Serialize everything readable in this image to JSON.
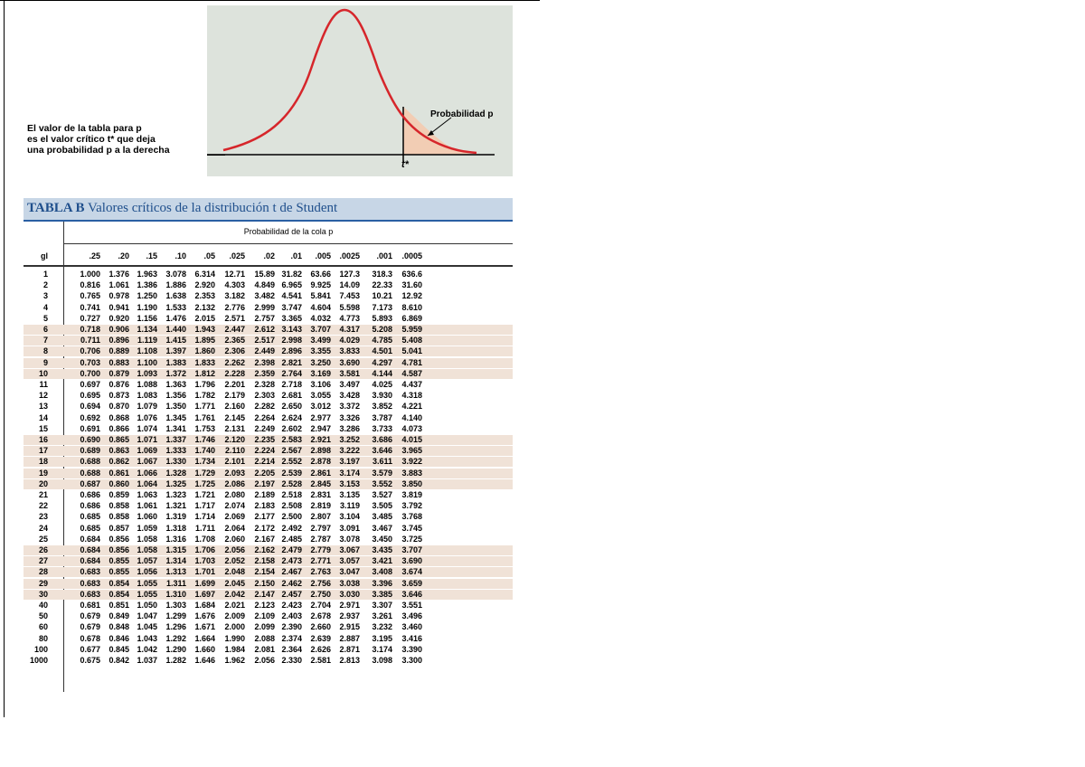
{
  "figure": {
    "caption": [
      "El valor de la tabla para p",
      "es el valor crítico t* que deja",
      "una probabilidad p a la derecha"
    ],
    "prob_label": "Probabilidad p",
    "t_label": "t*",
    "colors": {
      "curve": "#d6262b",
      "area": "#f2cdb4",
      "panel": "#dde3dc"
    }
  },
  "table": {
    "title_bold": "TABLA B",
    "title_rest": " Valores críticos de la distribución t de Student",
    "super_header": "Probabilidad de la cola p",
    "df_header": "gl",
    "columns": [
      ".25",
      ".20",
      ".15",
      ".10",
      ".05",
      ".025",
      ".02",
      ".01",
      ".005",
      ".0025",
      ".001",
      ".0005"
    ],
    "rows": [
      {
        "df": "1",
        "v": [
          "1.000",
          "1.376",
          "1.963",
          "3.078",
          "6.314",
          "12.71",
          "15.89",
          "31.82",
          "63.66",
          "127.3",
          "318.3",
          "636.6"
        ]
      },
      {
        "df": "2",
        "v": [
          "0.816",
          "1.061",
          "1.386",
          "1.886",
          "2.920",
          "4.303",
          "4.849",
          "6.965",
          "9.925",
          "14.09",
          "22.33",
          "31.60"
        ]
      },
      {
        "df": "3",
        "v": [
          "0.765",
          "0.978",
          "1.250",
          "1.638",
          "2.353",
          "3.182",
          "3.482",
          "4.541",
          "5.841",
          "7.453",
          "10.21",
          "12.92"
        ]
      },
      {
        "df": "4",
        "v": [
          "0.741",
          "0.941",
          "1.190",
          "1.533",
          "2.132",
          "2.776",
          "2.999",
          "3.747",
          "4.604",
          "5.598",
          "7.173",
          "8.610"
        ]
      },
      {
        "df": "5",
        "v": [
          "0.727",
          "0.920",
          "1.156",
          "1.476",
          "2.015",
          "2.571",
          "2.757",
          "3.365",
          "4.032",
          "4.773",
          "5.893",
          "6.869"
        ]
      },
      {
        "df": "6",
        "v": [
          "0.718",
          "0.906",
          "1.134",
          "1.440",
          "1.943",
          "2.447",
          "2.612",
          "3.143",
          "3.707",
          "4.317",
          "5.208",
          "5.959"
        ]
      },
      {
        "df": "7",
        "v": [
          "0.711",
          "0.896",
          "1.119",
          "1.415",
          "1.895",
          "2.365",
          "2.517",
          "2.998",
          "3.499",
          "4.029",
          "4.785",
          "5.408"
        ]
      },
      {
        "df": "8",
        "v": [
          "0.706",
          "0.889",
          "1.108",
          "1.397",
          "1.860",
          "2.306",
          "2.449",
          "2.896",
          "3.355",
          "3.833",
          "4.501",
          "5.041"
        ]
      },
      {
        "df": "9",
        "v": [
          "0.703",
          "0.883",
          "1.100",
          "1.383",
          "1.833",
          "2.262",
          "2.398",
          "2.821",
          "3.250",
          "3.690",
          "4.297",
          "4.781"
        ]
      },
      {
        "df": "10",
        "v": [
          "0.700",
          "0.879",
          "1.093",
          "1.372",
          "1.812",
          "2.228",
          "2.359",
          "2.764",
          "3.169",
          "3.581",
          "4.144",
          "4.587"
        ]
      },
      {
        "df": "11",
        "v": [
          "0.697",
          "0.876",
          "1.088",
          "1.363",
          "1.796",
          "2.201",
          "2.328",
          "2.718",
          "3.106",
          "3.497",
          "4.025",
          "4.437"
        ]
      },
      {
        "df": "12",
        "v": [
          "0.695",
          "0.873",
          "1.083",
          "1.356",
          "1.782",
          "2.179",
          "2.303",
          "2.681",
          "3.055",
          "3.428",
          "3.930",
          "4.318"
        ]
      },
      {
        "df": "13",
        "v": [
          "0.694",
          "0.870",
          "1.079",
          "1.350",
          "1.771",
          "2.160",
          "2.282",
          "2.650",
          "3.012",
          "3.372",
          "3.852",
          "4.221"
        ]
      },
      {
        "df": "14",
        "v": [
          "0.692",
          "0.868",
          "1.076",
          "1.345",
          "1.761",
          "2.145",
          "2.264",
          "2.624",
          "2.977",
          "3.326",
          "3.787",
          "4.140"
        ]
      },
      {
        "df": "15",
        "v": [
          "0.691",
          "0.866",
          "1.074",
          "1.341",
          "1.753",
          "2.131",
          "2.249",
          "2.602",
          "2.947",
          "3.286",
          "3.733",
          "4.073"
        ]
      },
      {
        "df": "16",
        "v": [
          "0.690",
          "0.865",
          "1.071",
          "1.337",
          "1.746",
          "2.120",
          "2.235",
          "2.583",
          "2.921",
          "3.252",
          "3.686",
          "4.015"
        ]
      },
      {
        "df": "17",
        "v": [
          "0.689",
          "0.863",
          "1.069",
          "1.333",
          "1.740",
          "2.110",
          "2.224",
          "2.567",
          "2.898",
          "3.222",
          "3.646",
          "3.965"
        ]
      },
      {
        "df": "18",
        "v": [
          "0.688",
          "0.862",
          "1.067",
          "1.330",
          "1.734",
          "2.101",
          "2.214",
          "2.552",
          "2.878",
          "3.197",
          "3.611",
          "3.922"
        ]
      },
      {
        "df": "19",
        "v": [
          "0.688",
          "0.861",
          "1.066",
          "1.328",
          "1.729",
          "2.093",
          "2.205",
          "2.539",
          "2.861",
          "3.174",
          "3.579",
          "3.883"
        ]
      },
      {
        "df": "20",
        "v": [
          "0.687",
          "0.860",
          "1.064",
          "1.325",
          "1.725",
          "2.086",
          "2.197",
          "2.528",
          "2.845",
          "3.153",
          "3.552",
          "3.850"
        ]
      },
      {
        "df": "21",
        "v": [
          "0.686",
          "0.859",
          "1.063",
          "1.323",
          "1.721",
          "2.080",
          "2.189",
          "2.518",
          "2.831",
          "3.135",
          "3.527",
          "3.819"
        ]
      },
      {
        "df": "22",
        "v": [
          "0.686",
          "0.858",
          "1.061",
          "1.321",
          "1.717",
          "2.074",
          "2.183",
          "2.508",
          "2.819",
          "3.119",
          "3.505",
          "3.792"
        ]
      },
      {
        "df": "23",
        "v": [
          "0.685",
          "0.858",
          "1.060",
          "1.319",
          "1.714",
          "2.069",
          "2.177",
          "2.500",
          "2.807",
          "3.104",
          "3.485",
          "3.768"
        ]
      },
      {
        "df": "24",
        "v": [
          "0.685",
          "0.857",
          "1.059",
          "1.318",
          "1.711",
          "2.064",
          "2.172",
          "2.492",
          "2.797",
          "3.091",
          "3.467",
          "3.745"
        ]
      },
      {
        "df": "25",
        "v": [
          "0.684",
          "0.856",
          "1.058",
          "1.316",
          "1.708",
          "2.060",
          "2.167",
          "2.485",
          "2.787",
          "3.078",
          "3.450",
          "3.725"
        ]
      },
      {
        "df": "26",
        "v": [
          "0.684",
          "0.856",
          "1.058",
          "1.315",
          "1.706",
          "2.056",
          "2.162",
          "2.479",
          "2.779",
          "3.067",
          "3.435",
          "3.707"
        ]
      },
      {
        "df": "27",
        "v": [
          "0.684",
          "0.855",
          "1.057",
          "1.314",
          "1.703",
          "2.052",
          "2.158",
          "2.473",
          "2.771",
          "3.057",
          "3.421",
          "3.690"
        ]
      },
      {
        "df": "28",
        "v": [
          "0.683",
          "0.855",
          "1.056",
          "1.313",
          "1.701",
          "2.048",
          "2.154",
          "2.467",
          "2.763",
          "3.047",
          "3.408",
          "3.674"
        ]
      },
      {
        "df": "29",
        "v": [
          "0.683",
          "0.854",
          "1.055",
          "1.311",
          "1.699",
          "2.045",
          "2.150",
          "2.462",
          "2.756",
          "3.038",
          "3.396",
          "3.659"
        ]
      },
      {
        "df": "30",
        "v": [
          "0.683",
          "0.854",
          "1.055",
          "1.310",
          "1.697",
          "2.042",
          "2.147",
          "2.457",
          "2.750",
          "3.030",
          "3.385",
          "3.646"
        ]
      },
      {
        "df": "40",
        "v": [
          "0.681",
          "0.851",
          "1.050",
          "1.303",
          "1.684",
          "2.021",
          "2.123",
          "2.423",
          "2.704",
          "2.971",
          "3.307",
          "3.551"
        ]
      },
      {
        "df": "50",
        "v": [
          "0.679",
          "0.849",
          "1.047",
          "1.299",
          "1.676",
          "2.009",
          "2.109",
          "2.403",
          "2.678",
          "2.937",
          "3.261",
          "3.496"
        ]
      },
      {
        "df": "60",
        "v": [
          "0.679",
          "0.848",
          "1.045",
          "1.296",
          "1.671",
          "2.000",
          "2.099",
          "2.390",
          "2.660",
          "2.915",
          "3.232",
          "3.460"
        ]
      },
      {
        "df": "80",
        "v": [
          "0.678",
          "0.846",
          "1.043",
          "1.292",
          "1.664",
          "1.990",
          "2.088",
          "2.374",
          "2.639",
          "2.887",
          "3.195",
          "3.416"
        ]
      },
      {
        "df": "100",
        "v": [
          "0.677",
          "0.845",
          "1.042",
          "1.290",
          "1.660",
          "1.984",
          "2.081",
          "2.364",
          "2.626",
          "2.871",
          "3.174",
          "3.390"
        ]
      },
      {
        "df": "1000",
        "v": [
          "0.675",
          "0.842",
          "1.037",
          "1.282",
          "1.646",
          "1.962",
          "2.056",
          "2.330",
          "2.581",
          "2.813",
          "3.098",
          "3.300"
        ]
      }
    ],
    "shade_color": "#f0e2d7"
  }
}
